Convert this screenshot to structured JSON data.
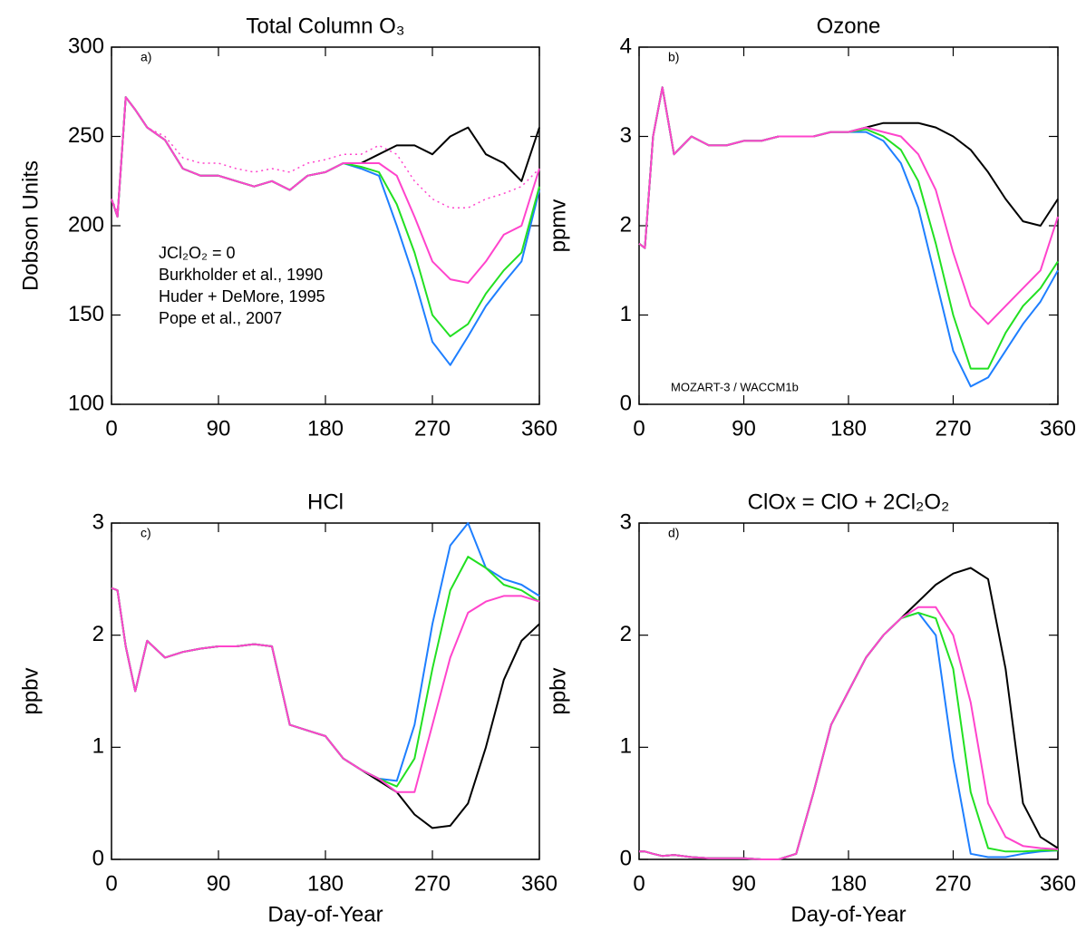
{
  "chart_data": [
    {
      "type": "line",
      "title": "Total Column O₃",
      "panel": "a)",
      "ylabel": "Dobson Units",
      "x": [
        0,
        5,
        12,
        20,
        30,
        45,
        60,
        75,
        90,
        105,
        120,
        135,
        150,
        165,
        180,
        195,
        210,
        225,
        240,
        255,
        270,
        285,
        300,
        315,
        330,
        345,
        360
      ],
      "xlim": [
        0,
        360
      ],
      "xticks": [
        0,
        90,
        180,
        270,
        360
      ],
      "ylim": [
        100,
        300
      ],
      "yticks": [
        100,
        150,
        200,
        250,
        300
      ],
      "legend": true,
      "series": [
        {
          "name": "JCl₂O₂ = 0",
          "color": "#000000",
          "values": [
            215,
            205,
            272,
            265,
            255,
            248,
            232,
            228,
            228,
            225,
            222,
            225,
            220,
            228,
            230,
            235,
            235,
            240,
            245,
            245,
            240,
            250,
            255,
            240,
            235,
            225,
            255
          ]
        },
        {
          "name": "Burkholder et al., 1990",
          "color": "#1e7fff",
          "values": [
            215,
            205,
            272,
            265,
            255,
            248,
            232,
            228,
            228,
            225,
            222,
            225,
            220,
            228,
            230,
            235,
            232,
            228,
            200,
            170,
            135,
            122,
            138,
            155,
            168,
            180,
            220
          ]
        },
        {
          "name": "Huder + DeMore, 1995",
          "color": "#22e022",
          "values": [
            215,
            205,
            272,
            265,
            255,
            248,
            232,
            228,
            228,
            225,
            222,
            225,
            220,
            228,
            230,
            235,
            233,
            230,
            212,
            185,
            150,
            138,
            145,
            162,
            175,
            185,
            222
          ]
        },
        {
          "name": "Pope et al., 2007",
          "color": "#ff44cc",
          "values": [
            215,
            205,
            272,
            265,
            255,
            248,
            232,
            228,
            228,
            225,
            222,
            225,
            220,
            228,
            230,
            235,
            235,
            235,
            228,
            205,
            180,
            170,
            168,
            180,
            195,
            200,
            232
          ]
        },
        {
          "color": "#ff44cc",
          "dash": "dotted",
          "values": [
            215,
            208,
            272,
            265,
            255,
            250,
            238,
            235,
            235,
            232,
            230,
            232,
            230,
            235,
            237,
            240,
            240,
            245,
            240,
            225,
            215,
            210,
            210,
            215,
            218,
            222,
            232
          ]
        }
      ]
    },
    {
      "type": "line",
      "title": "Ozone",
      "panel": "b)",
      "ylabel": "ppmv",
      "annotation": "MOZART-3 / WACCM1b",
      "x": [
        0,
        5,
        12,
        20,
        30,
        45,
        60,
        75,
        90,
        105,
        120,
        135,
        150,
        165,
        180,
        195,
        210,
        225,
        240,
        255,
        270,
        285,
        300,
        315,
        330,
        345,
        360
      ],
      "xlim": [
        0,
        360
      ],
      "xticks": [
        0,
        90,
        180,
        270,
        360
      ],
      "ylim": [
        0,
        4
      ],
      "yticks": [
        0,
        1,
        2,
        3,
        4
      ],
      "series": [
        {
          "color": "#000000",
          "values": [
            1.8,
            1.75,
            3.0,
            3.55,
            2.8,
            3.0,
            2.9,
            2.9,
            2.95,
            2.95,
            3.0,
            3.0,
            3.0,
            3.05,
            3.05,
            3.1,
            3.15,
            3.15,
            3.15,
            3.1,
            3.0,
            2.85,
            2.6,
            2.3,
            2.05,
            2.0,
            2.3
          ]
        },
        {
          "color": "#1e7fff",
          "values": [
            1.8,
            1.75,
            3.0,
            3.55,
            2.8,
            3.0,
            2.9,
            2.9,
            2.95,
            2.95,
            3.0,
            3.0,
            3.0,
            3.05,
            3.05,
            3.05,
            2.95,
            2.7,
            2.2,
            1.4,
            0.6,
            0.2,
            0.3,
            0.6,
            0.9,
            1.15,
            1.5
          ]
        },
        {
          "color": "#22e022",
          "values": [
            1.8,
            1.75,
            3.0,
            3.55,
            2.8,
            3.0,
            2.9,
            2.9,
            2.95,
            2.95,
            3.0,
            3.0,
            3.0,
            3.05,
            3.05,
            3.08,
            3.0,
            2.85,
            2.5,
            1.8,
            1.0,
            0.4,
            0.4,
            0.8,
            1.1,
            1.3,
            1.6
          ]
        },
        {
          "color": "#ff44cc",
          "values": [
            1.8,
            1.75,
            3.0,
            3.55,
            2.8,
            3.0,
            2.9,
            2.9,
            2.95,
            2.95,
            3.0,
            3.0,
            3.0,
            3.05,
            3.05,
            3.1,
            3.05,
            3.0,
            2.8,
            2.4,
            1.7,
            1.1,
            0.9,
            1.1,
            1.3,
            1.5,
            2.1
          ]
        }
      ]
    },
    {
      "type": "line",
      "title": "HCl",
      "panel": "c)",
      "ylabel": "ppbv",
      "xlabel": "Day-of-Year",
      "x": [
        0,
        5,
        12,
        20,
        30,
        45,
        60,
        75,
        90,
        105,
        120,
        135,
        150,
        165,
        180,
        195,
        210,
        225,
        240,
        255,
        270,
        285,
        300,
        315,
        330,
        345,
        360
      ],
      "xlim": [
        0,
        360
      ],
      "xticks": [
        0,
        90,
        180,
        270,
        360
      ],
      "ylim": [
        0,
        3
      ],
      "yticks": [
        0,
        1,
        2,
        3
      ],
      "series": [
        {
          "color": "#000000",
          "values": [
            2.42,
            2.4,
            1.9,
            1.5,
            1.95,
            1.8,
            1.85,
            1.88,
            1.9,
            1.9,
            1.92,
            1.9,
            1.2,
            1.15,
            1.1,
            0.9,
            0.8,
            0.7,
            0.6,
            0.4,
            0.28,
            0.3,
            0.5,
            1.0,
            1.6,
            1.95,
            2.1
          ]
        },
        {
          "color": "#1e7fff",
          "values": [
            2.42,
            2.4,
            1.9,
            1.5,
            1.95,
            1.8,
            1.85,
            1.88,
            1.9,
            1.9,
            1.92,
            1.9,
            1.2,
            1.15,
            1.1,
            0.9,
            0.8,
            0.72,
            0.7,
            1.2,
            2.1,
            2.8,
            3.0,
            2.6,
            2.5,
            2.45,
            2.35
          ]
        },
        {
          "color": "#22e022",
          "values": [
            2.42,
            2.4,
            1.9,
            1.5,
            1.95,
            1.8,
            1.85,
            1.88,
            1.9,
            1.9,
            1.92,
            1.9,
            1.2,
            1.15,
            1.1,
            0.9,
            0.8,
            0.72,
            0.65,
            0.9,
            1.7,
            2.4,
            2.7,
            2.6,
            2.45,
            2.4,
            2.3
          ]
        },
        {
          "color": "#ff44cc",
          "values": [
            2.42,
            2.4,
            1.9,
            1.5,
            1.95,
            1.8,
            1.85,
            1.88,
            1.9,
            1.9,
            1.92,
            1.9,
            1.2,
            1.15,
            1.1,
            0.9,
            0.8,
            0.72,
            0.6,
            0.6,
            1.2,
            1.8,
            2.2,
            2.3,
            2.35,
            2.35,
            2.3
          ]
        }
      ]
    },
    {
      "type": "line",
      "title": "ClOx = ClO + 2Cl₂O₂",
      "panel": "d)",
      "ylabel": "ppbv",
      "xlabel": "Day-of-Year",
      "x": [
        0,
        5,
        12,
        20,
        30,
        45,
        60,
        75,
        90,
        105,
        120,
        135,
        150,
        165,
        180,
        195,
        210,
        225,
        240,
        255,
        270,
        285,
        300,
        315,
        330,
        345,
        360
      ],
      "xlim": [
        0,
        360
      ],
      "xticks": [
        0,
        90,
        180,
        270,
        360
      ],
      "ylim": [
        0,
        3
      ],
      "yticks": [
        0,
        1,
        2,
        3
      ],
      "series": [
        {
          "color": "#000000",
          "values": [
            0.07,
            0.07,
            0.05,
            0.03,
            0.04,
            0.02,
            0.01,
            0.01,
            0.01,
            0.0,
            0.0,
            0.05,
            0.6,
            1.2,
            1.5,
            1.8,
            2.0,
            2.15,
            2.3,
            2.45,
            2.55,
            2.6,
            2.5,
            1.7,
            0.5,
            0.2,
            0.1
          ]
        },
        {
          "color": "#1e7fff",
          "values": [
            0.07,
            0.07,
            0.05,
            0.03,
            0.04,
            0.02,
            0.01,
            0.01,
            0.01,
            0.0,
            0.0,
            0.05,
            0.6,
            1.2,
            1.5,
            1.8,
            2.0,
            2.15,
            2.2,
            2.0,
            0.9,
            0.05,
            0.02,
            0.02,
            0.05,
            0.07,
            0.08
          ]
        },
        {
          "color": "#22e022",
          "values": [
            0.07,
            0.07,
            0.05,
            0.03,
            0.04,
            0.02,
            0.01,
            0.01,
            0.01,
            0.0,
            0.0,
            0.05,
            0.6,
            1.2,
            1.5,
            1.8,
            2.0,
            2.15,
            2.2,
            2.15,
            1.7,
            0.6,
            0.1,
            0.07,
            0.07,
            0.08,
            0.08
          ]
        },
        {
          "color": "#ff44cc",
          "values": [
            0.07,
            0.07,
            0.05,
            0.03,
            0.04,
            0.02,
            0.01,
            0.01,
            0.01,
            0.0,
            0.0,
            0.05,
            0.6,
            1.2,
            1.5,
            1.8,
            2.0,
            2.15,
            2.25,
            2.25,
            2.0,
            1.4,
            0.5,
            0.2,
            0.12,
            0.1,
            0.09
          ]
        }
      ]
    }
  ]
}
